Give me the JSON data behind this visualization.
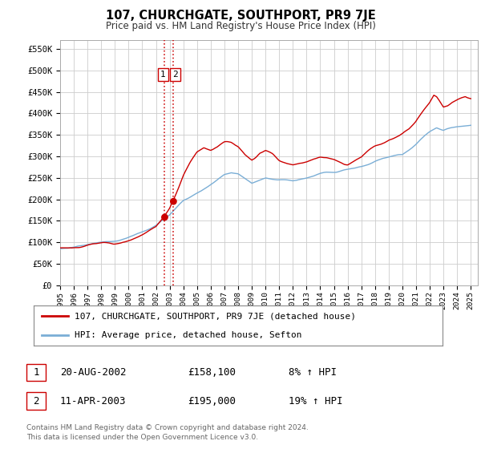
{
  "title": "107, CHURCHGATE, SOUTHPORT, PR9 7JE",
  "subtitle": "Price paid vs. HM Land Registry's House Price Index (HPI)",
  "legend_line1": "107, CHURCHGATE, SOUTHPORT, PR9 7JE (detached house)",
  "legend_line2": "HPI: Average price, detached house, Sefton",
  "transaction1_date": "20-AUG-2002",
  "transaction1_price": "£158,100",
  "transaction1_hpi": "8% ↑ HPI",
  "transaction1_year": 2002.64,
  "transaction1_value": 158100,
  "transaction2_date": "11-APR-2003",
  "transaction2_price": "£195,000",
  "transaction2_hpi": "19% ↑ HPI",
  "transaction2_year": 2003.28,
  "transaction2_value": 195000,
  "red_line_color": "#cc0000",
  "blue_line_color": "#7aaed6",
  "dotted_line_color": "#cc0000",
  "background_color": "#ffffff",
  "grid_color": "#cccccc",
  "ylim": [
    0,
    570000
  ],
  "xlim_start": 1995.0,
  "xlim_end": 2025.5,
  "footer_text": "Contains HM Land Registry data © Crown copyright and database right 2024.\nThis data is licensed under the Open Government Licence v3.0.",
  "ylabel_ticks": [
    0,
    50000,
    100000,
    150000,
    200000,
    250000,
    300000,
    350000,
    400000,
    450000,
    500000,
    550000
  ],
  "ylabel_labels": [
    "£0",
    "£50K",
    "£100K",
    "£150K",
    "£200K",
    "£250K",
    "£300K",
    "£350K",
    "£400K",
    "£450K",
    "£500K",
    "£550K"
  ],
  "xtick_years": [
    1995,
    1996,
    1997,
    1998,
    1999,
    2000,
    2001,
    2002,
    2003,
    2004,
    2005,
    2006,
    2007,
    2008,
    2009,
    2010,
    2011,
    2012,
    2013,
    2014,
    2015,
    2016,
    2017,
    2018,
    2019,
    2020,
    2021,
    2022,
    2023,
    2024,
    2025
  ],
  "hpi_keypoints": [
    [
      1995.0,
      85000
    ],
    [
      1996.0,
      87000
    ],
    [
      1997.0,
      91000
    ],
    [
      1998.0,
      95000
    ],
    [
      1999.0,
      99000
    ],
    [
      2000.0,
      106000
    ],
    [
      2001.0,
      116000
    ],
    [
      2002.0,
      132000
    ],
    [
      2003.0,
      157000
    ],
    [
      2004.0,
      192000
    ],
    [
      2005.0,
      210000
    ],
    [
      2006.0,
      228000
    ],
    [
      2007.0,
      248000
    ],
    [
      2007.5,
      252000
    ],
    [
      2008.0,
      248000
    ],
    [
      2009.0,
      225000
    ],
    [
      2010.0,
      238000
    ],
    [
      2011.0,
      235000
    ],
    [
      2012.0,
      233000
    ],
    [
      2013.0,
      240000
    ],
    [
      2014.0,
      250000
    ],
    [
      2015.0,
      258000
    ],
    [
      2016.0,
      265000
    ],
    [
      2017.0,
      272000
    ],
    [
      2018.0,
      280000
    ],
    [
      2019.0,
      285000
    ],
    [
      2020.0,
      292000
    ],
    [
      2021.0,
      318000
    ],
    [
      2022.0,
      348000
    ],
    [
      2022.5,
      358000
    ],
    [
      2023.0,
      352000
    ],
    [
      2024.0,
      362000
    ],
    [
      2025.0,
      368000
    ]
  ],
  "prop_keypoints": [
    [
      1995.0,
      88000
    ],
    [
      1996.0,
      90000
    ],
    [
      1997.0,
      95000
    ],
    [
      1998.0,
      99000
    ],
    [
      1999.0,
      103000
    ],
    [
      2000.0,
      109000
    ],
    [
      2001.0,
      117000
    ],
    [
      2002.0,
      130000
    ],
    [
      2002.64,
      158100
    ],
    [
      2003.0,
      175000
    ],
    [
      2003.28,
      195000
    ],
    [
      2003.6,
      220000
    ],
    [
      2004.0,
      255000
    ],
    [
      2004.5,
      285000
    ],
    [
      2005.0,
      310000
    ],
    [
      2005.5,
      320000
    ],
    [
      2006.0,
      315000
    ],
    [
      2006.5,
      318000
    ],
    [
      2007.0,
      322000
    ],
    [
      2007.5,
      318000
    ],
    [
      2008.0,
      308000
    ],
    [
      2008.5,
      290000
    ],
    [
      2009.0,
      278000
    ],
    [
      2009.3,
      285000
    ],
    [
      2009.6,
      295000
    ],
    [
      2010.0,
      300000
    ],
    [
      2010.5,
      293000
    ],
    [
      2011.0,
      280000
    ],
    [
      2011.5,
      275000
    ],
    [
      2012.0,
      272000
    ],
    [
      2012.5,
      278000
    ],
    [
      2013.0,
      282000
    ],
    [
      2013.5,
      288000
    ],
    [
      2014.0,
      292000
    ],
    [
      2014.5,
      290000
    ],
    [
      2015.0,
      286000
    ],
    [
      2015.5,
      282000
    ],
    [
      2016.0,
      278000
    ],
    [
      2016.5,
      285000
    ],
    [
      2017.0,
      292000
    ],
    [
      2017.5,
      305000
    ],
    [
      2018.0,
      315000
    ],
    [
      2018.5,
      322000
    ],
    [
      2019.0,
      330000
    ],
    [
      2019.5,
      338000
    ],
    [
      2020.0,
      345000
    ],
    [
      2020.5,
      358000
    ],
    [
      2021.0,
      378000
    ],
    [
      2021.5,
      402000
    ],
    [
      2022.0,
      425000
    ],
    [
      2022.3,
      442000
    ],
    [
      2022.5,
      438000
    ],
    [
      2023.0,
      415000
    ],
    [
      2023.3,
      420000
    ],
    [
      2023.6,
      428000
    ],
    [
      2024.0,
      435000
    ],
    [
      2024.3,
      442000
    ],
    [
      2024.6,
      448000
    ],
    [
      2025.0,
      445000
    ]
  ]
}
